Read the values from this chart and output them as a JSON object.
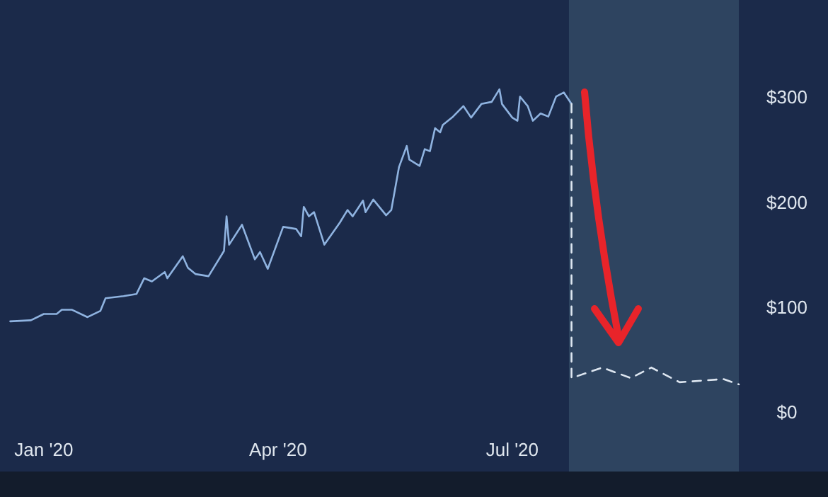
{
  "chart_data": {
    "type": "line",
    "xlim": [
      "2019-12-15",
      "2020-09-27"
    ],
    "ylim": [
      -57,
      392
    ],
    "xticks": [
      {
        "value": "2020-01-01",
        "label": "Jan '20"
      },
      {
        "value": "2020-04-01",
        "label": "Apr '20"
      },
      {
        "value": "2020-07-01",
        "label": "Jul '20"
      }
    ],
    "yticks": [
      {
        "value": 0,
        "label": "$0"
      },
      {
        "value": 100,
        "label": "$100"
      },
      {
        "value": 200,
        "label": "$200"
      },
      {
        "value": 300,
        "label": "$300"
      }
    ],
    "grid": false,
    "bands": [
      {
        "axis": "x",
        "from": "2020-07-23",
        "to": "2020-09-27",
        "color": "#2e4460"
      }
    ],
    "series": [
      {
        "color": "#8fb3e0",
        "line_style": "solid",
        "x": [
          "2019-12-19",
          "2019-12-27",
          "2020-01-01",
          "2020-01-06",
          "2020-01-08",
          "2020-01-12",
          "2020-01-18",
          "2020-01-23",
          "2020-01-25",
          "2020-02-01",
          "2020-02-06",
          "2020-02-09",
          "2020-02-12",
          "2020-02-17",
          "2020-02-18",
          "2020-02-24",
          "2020-02-26",
          "2020-02-29",
          "2020-03-05",
          "2020-03-11",
          "2020-03-12",
          "2020-03-13",
          "2020-03-18",
          "2020-03-23",
          "2020-03-25",
          "2020-03-28",
          "2020-04-03",
          "2020-04-08",
          "2020-04-10",
          "2020-04-11",
          "2020-04-13",
          "2020-04-15",
          "2020-04-19",
          "2020-04-25",
          "2020-04-28",
          "2020-04-30",
          "2020-05-04",
          "2020-05-05",
          "2020-05-08",
          "2020-05-13",
          "2020-05-15",
          "2020-05-18",
          "2020-05-21",
          "2020-05-22",
          "2020-05-26",
          "2020-05-28",
          "2020-05-30",
          "2020-06-01",
          "2020-06-03",
          "2020-06-04",
          "2020-06-08",
          "2020-06-12",
          "2020-06-15",
          "2020-06-19",
          "2020-06-23",
          "2020-06-26",
          "2020-06-27",
          "2020-07-01",
          "2020-07-03",
          "2020-07-04",
          "2020-07-07",
          "2020-07-09",
          "2020-07-12",
          "2020-07-15",
          "2020-07-18",
          "2020-07-21",
          "2020-07-24"
        ],
        "values": [
          86,
          87,
          93,
          93,
          97,
          97,
          90,
          96,
          108,
          110,
          112,
          127,
          124,
          133,
          127,
          148,
          137,
          131,
          129,
          153,
          186,
          159,
          178,
          145,
          152,
          136,
          176,
          174,
          167,
          195,
          186,
          190,
          159,
          180,
          192,
          186,
          201,
          190,
          202,
          187,
          192,
          233,
          253,
          240,
          234,
          250,
          248,
          270,
          266,
          273,
          281,
          291,
          280,
          293,
          295,
          307,
          293,
          280,
          277,
          300,
          291,
          277,
          284,
          281,
          300,
          304,
          293
        ]
      },
      {
        "color": "#dde6f0",
        "line_style": "dashed",
        "x": [
          "2020-07-24",
          "2020-07-24",
          "2020-08-05",
          "2020-08-16",
          "2020-08-24",
          "2020-09-04",
          "2020-09-21",
          "2020-09-27"
        ],
        "values": [
          293,
          32,
          42,
          32,
          42,
          28,
          31,
          26
        ]
      }
    ]
  }
}
